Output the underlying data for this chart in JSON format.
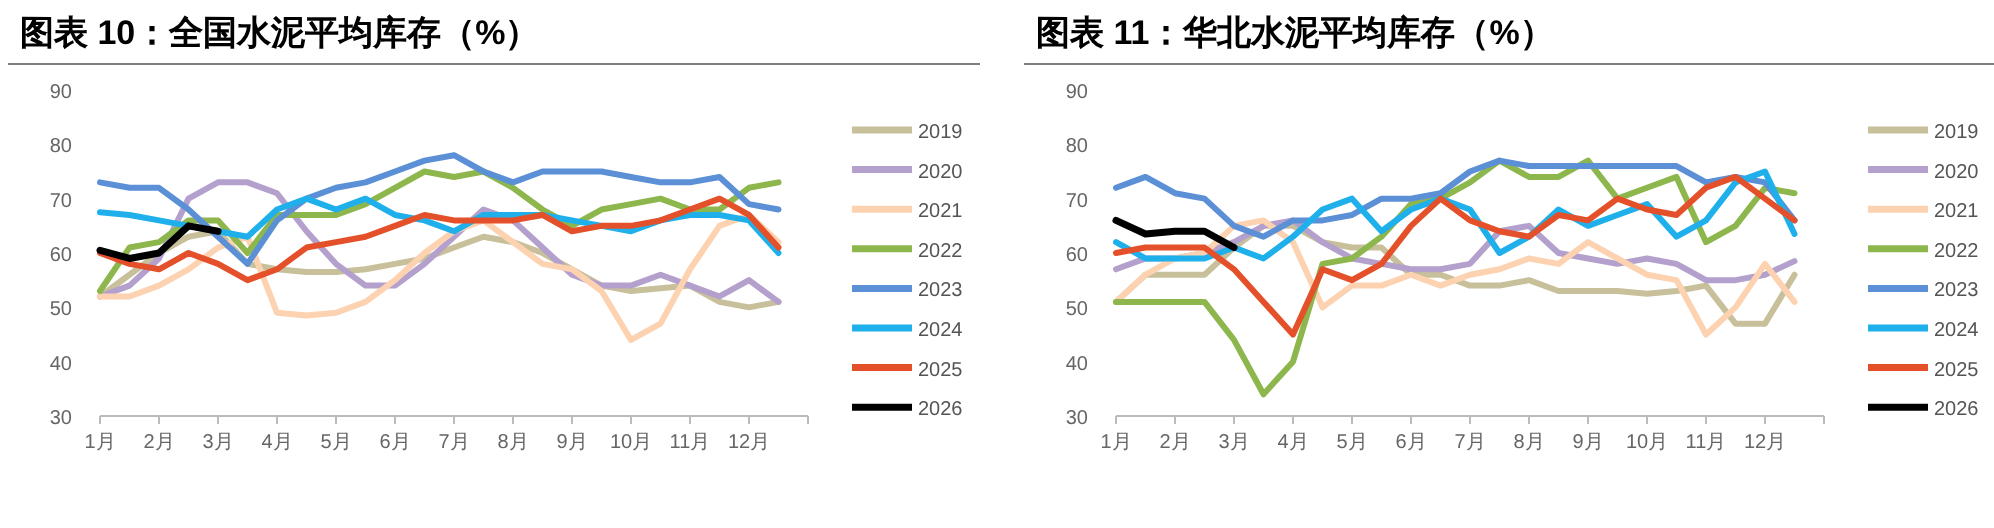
{
  "chart_data": [
    {
      "type": "line",
      "title": "图表 10：全国水泥平均库存（%）",
      "legend": "right",
      "ylim": [
        30,
        90
      ],
      "yticks": [
        30,
        40,
        50,
        60,
        70,
        80,
        90
      ],
      "categories": [
        "1月",
        null,
        "2月",
        null,
        "3月",
        null,
        "4月",
        null,
        "5月",
        null,
        "6月",
        null,
        "7月",
        null,
        "8月",
        null,
        "9月",
        null,
        "10月",
        null,
        "11月",
        null,
        "12月",
        null
      ],
      "series": [
        {
          "name": "2019",
          "color": "#c8c09a",
          "values": [
            52,
            56,
            60,
            63,
            64,
            58,
            57,
            56.5,
            56.5,
            57,
            58,
            59,
            61,
            63,
            62,
            60,
            57,
            54,
            53,
            53.5,
            54,
            51,
            50,
            51
          ]
        },
        {
          "name": "2020",
          "color": "#b4a0cc",
          "values": [
            52,
            54,
            59,
            70,
            73,
            73,
            71,
            64,
            58,
            54,
            54,
            58,
            63,
            68,
            66,
            61,
            56,
            54,
            54,
            56,
            54,
            52,
            55,
            51
          ]
        },
        {
          "name": "2021",
          "color": "#fcd2b0",
          "values": [
            52,
            52,
            54,
            57,
            61,
            63,
            49,
            48.5,
            49,
            51,
            55,
            60,
            64,
            66,
            62,
            58,
            57,
            53,
            44,
            47,
            57,
            65,
            67,
            62
          ]
        },
        {
          "name": "2022",
          "color": "#8db64c",
          "values": [
            53,
            61,
            62,
            66,
            66,
            60,
            67,
            67,
            67,
            69,
            72,
            75,
            74,
            75,
            72,
            68,
            65,
            68,
            69,
            70,
            68,
            68,
            72,
            73
          ]
        },
        {
          "name": "2023",
          "color": "#5b8fd6",
          "values": [
            73,
            72,
            72,
            68,
            63,
            58,
            66,
            70,
            72,
            73,
            75,
            77,
            78,
            75,
            73,
            75,
            75,
            75,
            74,
            73,
            73,
            74,
            69,
            68
          ]
        },
        {
          "name": "2024",
          "color": "#1fb0ec",
          "values": [
            67.5,
            67,
            66,
            65,
            64,
            63,
            68,
            70,
            68,
            70,
            67,
            66,
            64,
            67,
            67,
            67,
            66,
            65,
            64,
            66,
            67,
            67,
            66,
            60
          ]
        },
        {
          "name": "2025",
          "color": "#e4502a",
          "values": [
            60,
            58,
            57,
            60,
            58,
            55,
            57,
            61,
            62,
            63,
            65,
            67,
            66,
            66,
            66,
            67,
            64,
            65,
            65,
            66,
            68,
            70,
            67,
            61
          ]
        },
        {
          "name": "2026",
          "color": "#000000",
          "values": [
            60.5,
            59,
            60,
            65,
            64,
            null,
            null,
            null,
            null,
            null,
            null,
            null,
            null,
            null,
            null,
            null,
            null,
            null,
            null,
            null,
            null,
            null,
            null,
            null
          ]
        }
      ]
    },
    {
      "type": "line",
      "title": "图表 11：华北水泥平均库存（%）",
      "legend": "right",
      "ylim": [
        30,
        90
      ],
      "yticks": [
        30,
        40,
        50,
        60,
        70,
        80,
        90
      ],
      "categories": [
        "1月",
        null,
        "2月",
        null,
        "3月",
        null,
        "4月",
        null,
        "5月",
        null,
        "6月",
        null,
        "7月",
        null,
        "8月",
        null,
        "9月",
        null,
        "10月",
        null,
        "11月",
        null,
        "12月",
        null
      ],
      "series": [
        {
          "name": "2019",
          "color": "#c8c09a",
          "values": [
            51,
            56,
            56,
            56,
            61,
            65,
            65,
            62,
            61,
            61,
            56,
            56,
            54,
            54,
            55,
            53,
            53,
            53,
            52.5,
            53,
            54,
            47,
            47,
            56
          ]
        },
        {
          "name": "2020",
          "color": "#b4a0cc",
          "values": [
            57,
            59,
            59,
            60,
            62,
            65,
            66,
            62,
            59,
            58,
            57,
            57,
            58,
            64,
            65,
            60,
            59,
            58,
            59,
            58,
            55,
            55,
            56,
            58.5
          ]
        },
        {
          "name": "2021",
          "color": "#fcd2b0",
          "values": [
            51,
            56,
            59,
            60,
            65,
            66,
            62,
            50,
            54,
            54,
            56,
            54,
            56,
            57,
            59,
            58,
            62,
            59,
            56,
            55,
            45,
            50,
            58,
            51
          ]
        },
        {
          "name": "2022",
          "color": "#8db64c",
          "values": [
            51,
            51,
            51,
            51,
            44,
            34,
            40,
            58,
            59,
            63,
            69,
            70,
            73,
            77,
            74,
            74,
            77,
            70,
            72,
            74,
            62,
            65,
            72,
            71
          ]
        },
        {
          "name": "2023",
          "color": "#5b8fd6",
          "values": [
            72,
            74,
            71,
            70,
            65,
            63,
            66,
            66,
            67,
            70,
            70,
            71,
            75,
            77,
            76,
            76,
            76,
            76,
            76,
            76,
            73,
            74,
            73,
            66
          ]
        },
        {
          "name": "2024",
          "color": "#1fb0ec",
          "values": [
            62,
            59,
            59,
            59,
            61,
            59,
            63,
            68,
            70,
            64,
            68,
            70,
            68,
            60,
            63,
            68,
            65,
            67,
            69,
            63,
            66,
            73,
            75,
            63.5
          ]
        },
        {
          "name": "2025",
          "color": "#e4502a",
          "values": [
            60,
            61,
            61,
            61,
            57,
            51,
            45,
            57,
            55,
            58,
            65,
            70,
            66,
            64,
            63,
            67,
            66,
            70,
            68,
            67,
            72,
            74,
            70,
            66
          ]
        },
        {
          "name": "2026",
          "color": "#000000",
          "values": [
            66,
            63.5,
            64,
            64,
            61,
            null,
            null,
            null,
            null,
            null,
            null,
            null,
            null,
            null,
            null,
            null,
            null,
            null,
            null,
            null,
            null,
            null,
            null,
            null
          ]
        }
      ]
    }
  ]
}
